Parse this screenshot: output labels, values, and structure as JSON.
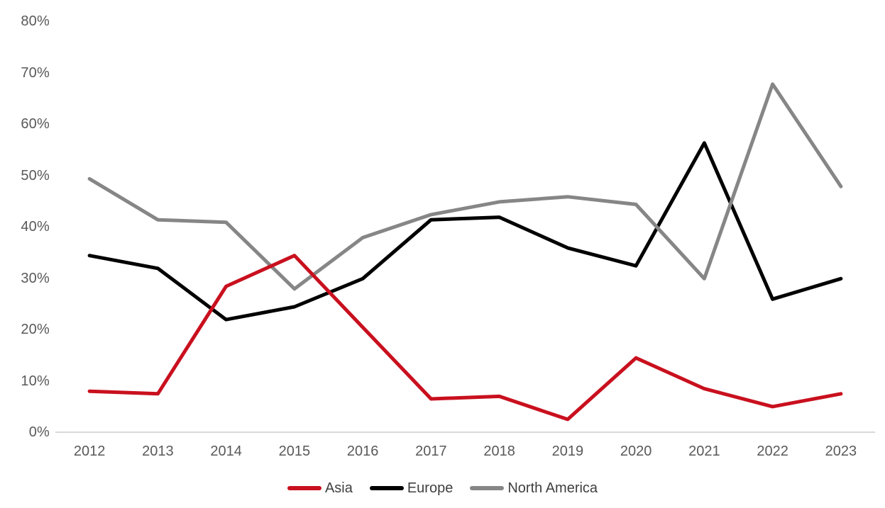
{
  "chart_data": {
    "type": "line",
    "title": "",
    "xlabel": "",
    "ylabel": "",
    "categories": [
      "2012",
      "2013",
      "2014",
      "2015",
      "2016",
      "2017",
      "2018",
      "2019",
      "2020",
      "2021",
      "2022",
      "2023"
    ],
    "series": [
      {
        "name": "Asia",
        "color": "#c9101e",
        "z": 3,
        "values": [
          8,
          7.5,
          28.5,
          34.5,
          20.5,
          6.5,
          7,
          2.5,
          14.5,
          8.5,
          5,
          7.5
        ]
      },
      {
        "name": "Europe",
        "color": "#000000",
        "z": 1,
        "values": [
          34.5,
          32,
          22,
          24.5,
          30,
          41.5,
          42,
          36,
          32.5,
          56.5,
          26,
          30
        ]
      },
      {
        "name": "North America",
        "color": "#868686",
        "z": 2,
        "values": [
          49.5,
          41.5,
          41,
          28,
          38,
          42.5,
          45,
          46,
          44.5,
          30,
          68,
          48
        ]
      }
    ],
    "ylim": [
      0,
      80
    ],
    "ytick_step": 10,
    "ytick_labels": [
      "80%",
      "70%",
      "60%",
      "50%",
      "40%",
      "30%",
      "20%",
      "10%",
      "0%"
    ],
    "grid": false,
    "legend_position": "bottom",
    "line_width": 5,
    "axis_line_color": "#d9d9d9",
    "tick_label_color": "#595959",
    "legend_text_color": "#3f3f3f"
  }
}
